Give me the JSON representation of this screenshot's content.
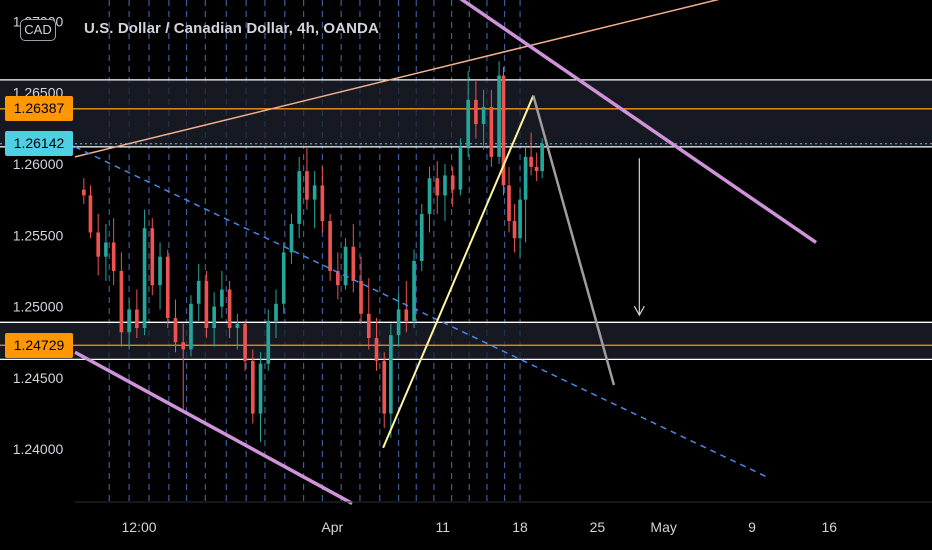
{
  "header": {
    "title": "U.S. Dollar / Canadian Dollar, 4h, OANDA",
    "currency": "CAD"
  },
  "colors": {
    "background": "#000000",
    "bull": "#26a69a",
    "bear": "#ef5350",
    "zone_line": "#ffffff",
    "level_line": "#f7941d",
    "last_price": "#4dd0e1",
    "channel": "#ce93d8",
    "upper_trend": "#f2b08f",
    "dashed_trend": "#4a86e8",
    "vertical_dash": "#3d5c9e",
    "rising_leg": "#fff59d",
    "connector": "#9e9e9e"
  },
  "price_labels": [
    {
      "value": "1.26387",
      "price": 1.26387,
      "color": "#ff9800"
    },
    {
      "value": "1.26142",
      "price": 1.26142,
      "color": "#4dd0e1"
    },
    {
      "value": "1.24729",
      "price": 1.24729,
      "color": "#ff9800"
    }
  ],
  "chart_data": {
    "type": "candlestick",
    "symbol": "U.S. Dollar / Canadian Dollar",
    "interval": "4h",
    "source": "OANDA",
    "y_ticks": [
      "1.27000",
      "1.26500",
      "1.26000",
      "1.25500",
      "1.25000",
      "1.24500",
      "1.24000"
    ],
    "y_tick_values": [
      1.27,
      1.265,
      1.26,
      1.255,
      1.25,
      1.245,
      1.24
    ],
    "x_ticks": [
      "12:00",
      "Apr",
      "11",
      "18",
      "25",
      "May",
      "9",
      "16"
    ],
    "x_tick_days": [
      -17.5,
      0,
      10,
      17,
      24,
      30,
      38,
      45
    ],
    "ylim": [
      1.2363,
      1.2715
    ],
    "xlim_days": [
      -23.3,
      54.3
    ],
    "last_price": 1.26142,
    "resistance_zone": [
      1.2659,
      1.26387,
      1.2612
    ],
    "support_zone": [
      1.2489,
      1.24729,
      1.2463
    ],
    "ohlc_4h_sampled": [
      {
        "d": -22.5,
        "o": 1.2582,
        "h": 1.259,
        "l": 1.2572,
        "c": 1.2578
      },
      {
        "d": -21.9,
        "o": 1.2578,
        "h": 1.2585,
        "l": 1.2548,
        "c": 1.2552
      },
      {
        "d": -21.2,
        "o": 1.2552,
        "h": 1.2565,
        "l": 1.2522,
        "c": 1.2535
      },
      {
        "d": -20.5,
        "o": 1.2535,
        "h": 1.2558,
        "l": 1.2518,
        "c": 1.2545
      },
      {
        "d": -19.8,
        "o": 1.2545,
        "h": 1.2562,
        "l": 1.2515,
        "c": 1.2525
      },
      {
        "d": -19.1,
        "o": 1.2525,
        "h": 1.2538,
        "l": 1.2472,
        "c": 1.2482
      },
      {
        "d": -18.4,
        "o": 1.2482,
        "h": 1.2505,
        "l": 1.247,
        "c": 1.2498
      },
      {
        "d": -17.7,
        "o": 1.2498,
        "h": 1.2512,
        "l": 1.2478,
        "c": 1.2485
      },
      {
        "d": -17.0,
        "o": 1.2485,
        "h": 1.2568,
        "l": 1.248,
        "c": 1.2555
      },
      {
        "d": -16.3,
        "o": 1.2555,
        "h": 1.2562,
        "l": 1.2508,
        "c": 1.2515
      },
      {
        "d": -15.6,
        "o": 1.2515,
        "h": 1.2545,
        "l": 1.2498,
        "c": 1.2535
      },
      {
        "d": -14.9,
        "o": 1.2535,
        "h": 1.254,
        "l": 1.2485,
        "c": 1.2492
      },
      {
        "d": -14.2,
        "o": 1.2492,
        "h": 1.2505,
        "l": 1.2468,
        "c": 1.2475
      },
      {
        "d": -13.5,
        "o": 1.2475,
        "h": 1.2488,
        "l": 1.2428,
        "c": 1.247
      },
      {
        "d": -12.8,
        "o": 1.247,
        "h": 1.2508,
        "l": 1.2465,
        "c": 1.2502
      },
      {
        "d": -12.1,
        "o": 1.2502,
        "h": 1.253,
        "l": 1.249,
        "c": 1.2518
      },
      {
        "d": -11.4,
        "o": 1.2518,
        "h": 1.2525,
        "l": 1.2478,
        "c": 1.2485
      },
      {
        "d": -10.7,
        "o": 1.2485,
        "h": 1.251,
        "l": 1.2472,
        "c": 1.25
      },
      {
        "d": -10.0,
        "o": 1.25,
        "h": 1.2525,
        "l": 1.2492,
        "c": 1.2512
      },
      {
        "d": -9.3,
        "o": 1.2512,
        "h": 1.2518,
        "l": 1.2478,
        "c": 1.2485
      },
      {
        "d": -8.6,
        "o": 1.2485,
        "h": 1.2495,
        "l": 1.247,
        "c": 1.2488
      },
      {
        "d": -7.9,
        "o": 1.2488,
        "h": 1.249,
        "l": 1.2455,
        "c": 1.2462
      },
      {
        "d": -7.2,
        "o": 1.2462,
        "h": 1.247,
        "l": 1.2418,
        "c": 1.2425
      },
      {
        "d": -6.5,
        "o": 1.2425,
        "h": 1.2468,
        "l": 1.2405,
        "c": 1.246
      },
      {
        "d": -5.8,
        "o": 1.246,
        "h": 1.2498,
        "l": 1.2455,
        "c": 1.249
      },
      {
        "d": -5.1,
        "o": 1.249,
        "h": 1.2512,
        "l": 1.2478,
        "c": 1.2502
      },
      {
        "d": -4.4,
        "o": 1.2502,
        "h": 1.2545,
        "l": 1.2495,
        "c": 1.2538
      },
      {
        "d": -3.7,
        "o": 1.2538,
        "h": 1.2565,
        "l": 1.253,
        "c": 1.2558
      },
      {
        "d": -3.0,
        "o": 1.2558,
        "h": 1.2605,
        "l": 1.2548,
        "c": 1.2595
      },
      {
        "d": -2.3,
        "o": 1.2595,
        "h": 1.2612,
        "l": 1.2568,
        "c": 1.2575
      },
      {
        "d": -1.6,
        "o": 1.2575,
        "h": 1.2595,
        "l": 1.2555,
        "c": 1.2585
      },
      {
        "d": -0.9,
        "o": 1.2585,
        "h": 1.2598,
        "l": 1.2552,
        "c": 1.256
      },
      {
        "d": -0.2,
        "o": 1.256,
        "h": 1.2565,
        "l": 1.2518,
        "c": 1.2525
      },
      {
        "d": 0.5,
        "o": 1.2525,
        "h": 1.2538,
        "l": 1.2505,
        "c": 1.2515
      },
      {
        "d": 1.2,
        "o": 1.2515,
        "h": 1.2548,
        "l": 1.2512,
        "c": 1.2542
      },
      {
        "d": 1.9,
        "o": 1.2542,
        "h": 1.2558,
        "l": 1.251,
        "c": 1.2518
      },
      {
        "d": 2.6,
        "o": 1.2518,
        "h": 1.2535,
        "l": 1.2488,
        "c": 1.2495
      },
      {
        "d": 3.3,
        "o": 1.2495,
        "h": 1.252,
        "l": 1.247,
        "c": 1.2478
      },
      {
        "d": 4.0,
        "o": 1.2478,
        "h": 1.2492,
        "l": 1.2455,
        "c": 1.2462
      },
      {
        "d": 4.7,
        "o": 1.2462,
        "h": 1.2468,
        "l": 1.2415,
        "c": 1.2425
      },
      {
        "d": 5.3,
        "o": 1.2425,
        "h": 1.2488,
        "l": 1.2408,
        "c": 1.248
      },
      {
        "d": 6.0,
        "o": 1.248,
        "h": 1.251,
        "l": 1.2472,
        "c": 1.2498
      },
      {
        "d": 6.7,
        "o": 1.2498,
        "h": 1.2518,
        "l": 1.2482,
        "c": 1.249
      },
      {
        "d": 7.4,
        "o": 1.249,
        "h": 1.254,
        "l": 1.2485,
        "c": 1.2532
      },
      {
        "d": 8.1,
        "o": 1.2532,
        "h": 1.2572,
        "l": 1.2525,
        "c": 1.2565
      },
      {
        "d": 8.8,
        "o": 1.2565,
        "h": 1.2598,
        "l": 1.2552,
        "c": 1.259
      },
      {
        "d": 9.5,
        "o": 1.259,
        "h": 1.2602,
        "l": 1.2565,
        "c": 1.2578
      },
      {
        "d": 10.2,
        "o": 1.2578,
        "h": 1.26,
        "l": 1.256,
        "c": 1.2592
      },
      {
        "d": 10.9,
        "o": 1.2592,
        "h": 1.2598,
        "l": 1.257,
        "c": 1.2582
      },
      {
        "d": 11.6,
        "o": 1.2582,
        "h": 1.2618,
        "l": 1.2578,
        "c": 1.2612
      },
      {
        "d": 12.3,
        "o": 1.2612,
        "h": 1.2665,
        "l": 1.2605,
        "c": 1.2645
      },
      {
        "d": 13.0,
        "o": 1.2645,
        "h": 1.2658,
        "l": 1.2618,
        "c": 1.2628
      },
      {
        "d": 13.7,
        "o": 1.2628,
        "h": 1.2652,
        "l": 1.261,
        "c": 1.264
      },
      {
        "d": 14.4,
        "o": 1.264,
        "h": 1.2652,
        "l": 1.2598,
        "c": 1.2605
      },
      {
        "d": 15.1,
        "o": 1.2605,
        "h": 1.2672,
        "l": 1.26,
        "c": 1.2662
      },
      {
        "d": 15.5,
        "o": 1.2662,
        "h": 1.2668,
        "l": 1.2578,
        "c": 1.2585
      },
      {
        "d": 16.0,
        "o": 1.2585,
        "h": 1.2598,
        "l": 1.2552,
        "c": 1.256
      },
      {
        "d": 16.5,
        "o": 1.256,
        "h": 1.2572,
        "l": 1.2538,
        "c": 1.2548
      },
      {
        "d": 17.0,
        "o": 1.2548,
        "h": 1.2582,
        "l": 1.2535,
        "c": 1.2575
      },
      {
        "d": 17.5,
        "o": 1.2575,
        "h": 1.2612,
        "l": 1.2545,
        "c": 1.2605
      },
      {
        "d": 18.0,
        "o": 1.2605,
        "h": 1.2622,
        "l": 1.2592,
        "c": 1.2598
      },
      {
        "d": 18.5,
        "o": 1.2598,
        "h": 1.2608,
        "l": 1.2588,
        "c": 1.2595
      },
      {
        "d": 19.0,
        "o": 1.2595,
        "h": 1.2618,
        "l": 1.259,
        "c": 1.26142
      }
    ],
    "drawings": {
      "vertical_dashes_days": [
        -20.2,
        -18.4,
        -16.6,
        -14.8,
        -13.2,
        -11.5,
        -9.6,
        -7.8,
        -6.1,
        -4.3,
        -2.6,
        -0.9,
        0.8,
        2.5,
        4.3,
        6.0,
        7.6,
        9.2,
        10.8,
        12.4,
        14.0,
        15.6,
        17.0
      ],
      "channel_upper": [
        {
          "d": 6.7,
          "p": 1.2742
        },
        {
          "d": 43.8,
          "p": 1.2545
        }
      ],
      "channel_lower": [
        {
          "d": -23.3,
          "p": 1.2468
        },
        {
          "d": 1.8,
          "p": 1.2362
        }
      ],
      "upper_trend": [
        {
          "d": -23.3,
          "p": 1.2605
        },
        {
          "d": 54.3,
          "p": 1.2752
        }
      ],
      "dashed_trend": [
        {
          "d": -23.3,
          "p": 1.2612
        },
        {
          "d": 39.5,
          "p": 1.238
        }
      ],
      "rising_leg": [
        {
          "d": 4.6,
          "p": 1.2401
        },
        {
          "d": 18.2,
          "p": 1.2648
        }
      ],
      "connector": [
        {
          "d": 18.2,
          "p": 1.2648
        },
        {
          "d": 25.5,
          "p": 1.2445
        }
      ],
      "target_arrow": [
        {
          "d": 27.8,
          "p": 1.2604
        },
        {
          "d": 27.8,
          "p": 1.2494
        }
      ]
    }
  }
}
